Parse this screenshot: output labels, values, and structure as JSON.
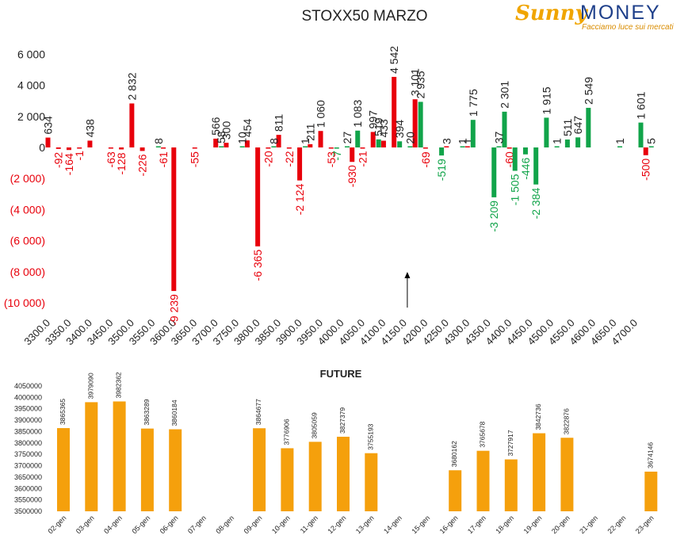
{
  "brand": {
    "name_part1": "Sunny",
    "name_part2": "MONEY",
    "tagline": "Facciamo luce sui mercati"
  },
  "colors": {
    "negative": "#e8000b",
    "positive": "#11a44a",
    "future": "#f5a00c",
    "arrow": "#000000"
  },
  "chart_data": [
    {
      "type": "bar",
      "title": "STOXX50 MARZO",
      "xlabel": "",
      "ylabel": "",
      "ylim": [
        -10000,
        6000
      ],
      "yticks": [
        6000,
        4000,
        2000,
        0,
        -2000,
        -4000,
        -6000,
        -8000,
        -10000
      ],
      "ytick_labels": [
        "6 000",
        "4 000",
        "2 000",
        "0",
        "(2 000)",
        "(4 000)",
        "(6 000)",
        "(8 000)",
        "(10 000)"
      ],
      "categories": [
        "3300.0",
        "3350.0",
        "3400.0",
        "3450.0",
        "3500.0",
        "3550.0",
        "3600.0",
        "3650.0",
        "3700.0",
        "3750.0",
        "3800.0",
        "3850.0",
        "3900.0",
        "3950.0",
        "4000.0",
        "4050.0",
        "4100.0",
        "4150.0",
        "4200.0",
        "4250.0",
        "4300.0",
        "4350.0",
        "4400.0",
        "4450.0",
        "4500.0",
        "4550.0",
        "4600.0",
        "4650.0",
        "4700.0"
      ],
      "annotation": "Underlying price arrow near 4150.0",
      "arrow_x": 4150,
      "series": [
        {
          "color": "negative",
          "points": [
            {
              "x": 3300,
              "y": 634,
              "label": "634"
            },
            {
              "x": 3325,
              "y": -92,
              "label": "-92"
            },
            {
              "x": 3350,
              "y": -164,
              "label": "-164"
            },
            {
              "x": 3375,
              "y": -1,
              "label": "-1"
            },
            {
              "x": 3400,
              "y": 438,
              "label": "438"
            },
            {
              "x": 3450,
              "y": -63,
              "label": "-63"
            },
            {
              "x": 3475,
              "y": -128,
              "label": "-128"
            },
            {
              "x": 3500,
              "y": 2832,
              "label": "2 832"
            },
            {
              "x": 3525,
              "y": -226,
              "label": "-226"
            },
            {
              "x": 3575,
              "y": -61,
              "label": "-61"
            },
            {
              "x": 3600,
              "y": -9239,
              "label": "-9 239"
            },
            {
              "x": 3650,
              "y": -55,
              "label": "-55"
            },
            {
              "x": 3700,
              "y": 566,
              "label": "566"
            },
            {
              "x": 3725,
              "y": 300,
              "label": "300"
            },
            {
              "x": 3775,
              "y": 454,
              "label": "454"
            },
            {
              "x": 3800,
              "y": -6365,
              "label": "-6 365"
            },
            {
              "x": 3825,
              "y": -20,
              "label": "-20"
            },
            {
              "x": 3850,
              "y": 811,
              "label": "811"
            },
            {
              "x": 3875,
              "y": -22,
              "label": "-22"
            },
            {
              "x": 3900,
              "y": -2124,
              "label": "-2 124"
            },
            {
              "x": 3925,
              "y": 211,
              "label": "211"
            },
            {
              "x": 3950,
              "y": 1060,
              "label": "1 060"
            },
            {
              "x": 3975,
              "y": -53,
              "label": "-53"
            },
            {
              "x": 4025,
              "y": -930,
              "label": "-930"
            },
            {
              "x": 4050,
              "y": -21,
              "label": "-21"
            },
            {
              "x": 4075,
              "y": 997,
              "label": "997"
            },
            {
              "x": 4100,
              "y": 433,
              "label": "433"
            },
            {
              "x": 4125,
              "y": 4542,
              "label": "4 542"
            },
            {
              "x": 4175,
              "y": 3101,
              "label": "3 101"
            },
            {
              "x": 4200,
              "y": -69,
              "label": "-69"
            },
            {
              "x": 4250,
              "y": 3,
              "label": "3"
            },
            {
              "x": 4300,
              "y": 1,
              "label": "1"
            },
            {
              "x": 4400,
              "y": -60,
              "label": "-60"
            },
            {
              "x": 4725,
              "y": -500,
              "label": "-500"
            }
          ]
        },
        {
          "color": "positive",
          "points": [
            {
              "x": 3550,
              "y": 8,
              "label": "8"
            },
            {
              "x": 3700,
              "y": 58,
              "label": "58"
            },
            {
              "x": 3750,
              "y": 10,
              "label": "10"
            },
            {
              "x": 3825,
              "y": 8,
              "label": "8"
            },
            {
              "x": 3900,
              "y": 1,
              "label": "1"
            },
            {
              "x": 3975,
              "y": -7,
              "label": "-7"
            },
            {
              "x": 4000,
              "y": 27,
              "label": "27"
            },
            {
              "x": 4025,
              "y": 1083,
              "label": "1 083"
            },
            {
              "x": 4075,
              "y": 519,
              "label": "519"
            },
            {
              "x": 4125,
              "y": 394,
              "label": "394"
            },
            {
              "x": 4150,
              "y": 20,
              "label": "20"
            },
            {
              "x": 4175,
              "y": 2935,
              "label": "2 935"
            },
            {
              "x": 4225,
              "y": -519,
              "label": "-519"
            },
            {
              "x": 4275,
              "y": 1,
              "label": "1"
            },
            {
              "x": 4300,
              "y": 1775,
              "label": "1 775"
            },
            {
              "x": 4350,
              "y": -3209,
              "label": "-3 209"
            },
            {
              "x": 4375,
              "y": 2301,
              "label": "2 301"
            },
            {
              "x": 4375,
              "y": 37,
              "label": "37",
              "offset": -1
            },
            {
              "x": 4400,
              "y": -1505,
              "label": "-1 505"
            },
            {
              "x": 4425,
              "y": -446,
              "label": "-446"
            },
            {
              "x": 4450,
              "y": -2384,
              "label": "-2 384"
            },
            {
              "x": 4475,
              "y": 1915,
              "label": "1 915"
            },
            {
              "x": 4500,
              "y": 1,
              "label": "1"
            },
            {
              "x": 4525,
              "y": 511,
              "label": "511"
            },
            {
              "x": 4550,
              "y": 647,
              "label": "647"
            },
            {
              "x": 4575,
              "y": 2549,
              "label": "2 549"
            },
            {
              "x": 4650,
              "y": 1,
              "label": "1"
            },
            {
              "x": 4700,
              "y": 1601,
              "label": "1 601"
            },
            {
              "x": 4725,
              "y": 5,
              "label": "5"
            }
          ]
        }
      ]
    },
    {
      "type": "bar",
      "title": "FUTURE",
      "xlabel": "",
      "ylabel": "",
      "ylim": [
        3500000,
        4050000
      ],
      "yticks": [
        3500000,
        3550000,
        3600000,
        3650000,
        3700000,
        3750000,
        3800000,
        3850000,
        3900000,
        3950000,
        4000000,
        4050000
      ],
      "categories": [
        "02-gen",
        "03-gen",
        "04-gen",
        "05-gen",
        "06-gen",
        "07-gen",
        "08-gen",
        "09-gen",
        "10-gen",
        "11-gen",
        "12-gen",
        "13-gen",
        "14-gen",
        "15-gen",
        "16-gen",
        "17-gen",
        "18-gen",
        "19-gen",
        "20-gen",
        "21-gen",
        "22-gen",
        "23-gen"
      ],
      "values": [
        3865365,
        3979090,
        3982362,
        3863289,
        3860184,
        null,
        null,
        3864677,
        3776906,
        3805059,
        3827379,
        3755193,
        null,
        null,
        3680162,
        3765678,
        3727917,
        3842736,
        3822876,
        null,
        null,
        3674146
      ],
      "color": "future"
    }
  ]
}
